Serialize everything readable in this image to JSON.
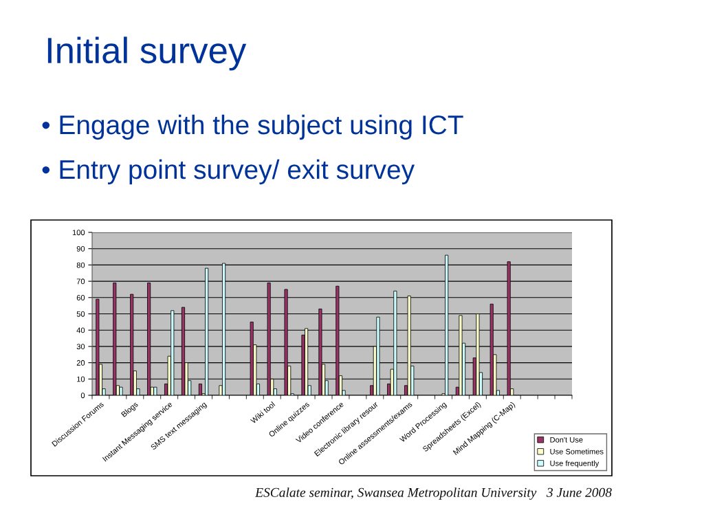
{
  "chart_data": {
    "type": "bar",
    "title": "Initial survey",
    "annotations": [
      "• Engage with the subject using ICT",
      "• Entry point survey/ exit survey",
      "ESCalate seminar, Swansea Metropolitan University   3 June 2008"
    ],
    "categories": [
      "Discussion Forums",
      null,
      "Blogs",
      null,
      "Instant Messaging service",
      null,
      "SMS text messaging",
      null,
      null,
      null,
      "Wiki tool",
      null,
      "Online quizzes",
      null,
      "Video conference",
      null,
      "Electronic library resour",
      null,
      "Online assessments/exams",
      null,
      "Word Processing",
      null,
      "Spreadsheets (Excel)",
      null,
      "Mind Mapping (C-Map)",
      null,
      null,
      null
    ],
    "series": [
      {
        "name": "Don't Use",
        "color": "#993366",
        "values": [
          59,
          69,
          62,
          69,
          7,
          54,
          7,
          null,
          null,
          45,
          69,
          65,
          37,
          53,
          67,
          null,
          6,
          7,
          6,
          null,
          null,
          5,
          23,
          56,
          82,
          null,
          null,
          null
        ]
      },
      {
        "name": "Use Sometimes",
        "color": "#ffffcc",
        "values": [
          19,
          6,
          15,
          5,
          24,
          20,
          1,
          6,
          null,
          31,
          10,
          18,
          41,
          19,
          12,
          null,
          30,
          16,
          61,
          null,
          1,
          49,
          50,
          25,
          4,
          null,
          null,
          null
        ]
      },
      {
        "name": "Use frequently",
        "color": "#ccffff",
        "values": [
          4,
          5,
          4,
          5,
          52,
          9,
          78,
          81,
          null,
          7,
          4,
          1,
          6,
          9,
          3,
          null,
          48,
          64,
          18,
          null,
          86,
          32,
          14,
          3,
          null,
          null,
          null,
          null
        ]
      }
    ],
    "ylim": [
      0,
      100
    ],
    "yticks": [
      0,
      10,
      20,
      30,
      40,
      50,
      60,
      70,
      80,
      90,
      100
    ],
    "grid": "y",
    "legend": "bottom right"
  }
}
